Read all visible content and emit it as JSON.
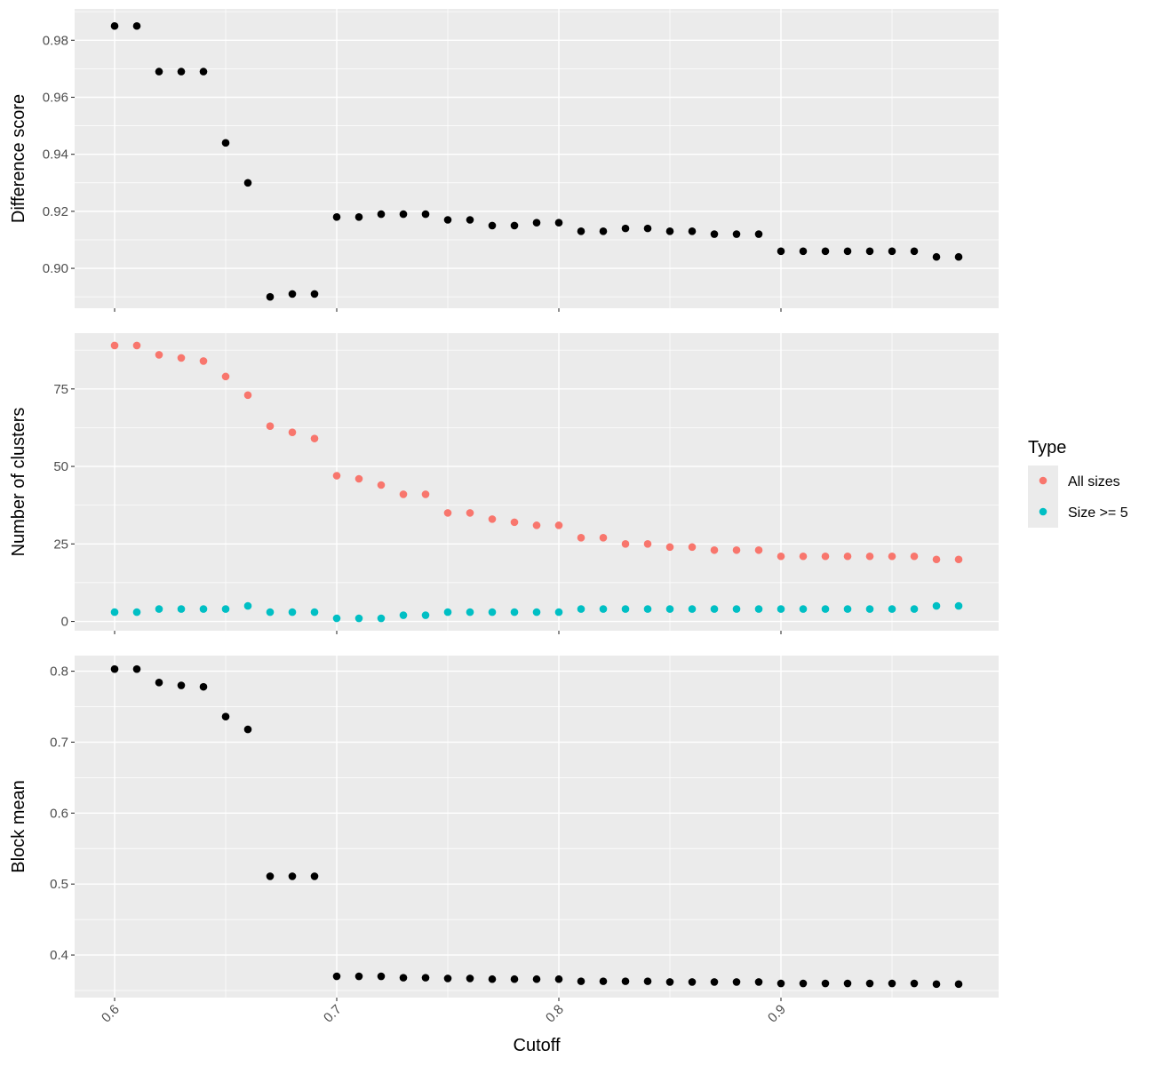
{
  "chart_data": [
    {
      "type": "scatter",
      "ylabel": "Difference score",
      "ylim": [
        0.886,
        0.991
      ],
      "yticks": [
        0.9,
        0.92,
        0.94,
        0.96,
        0.98
      ],
      "ytick_labels": [
        "0.90",
        "0.92",
        "0.94",
        "0.96",
        "0.98"
      ],
      "grid": true,
      "series": [
        {
          "color": "#000000",
          "x": [
            0.6,
            0.61,
            0.62,
            0.63,
            0.64,
            0.65,
            0.66,
            0.67,
            0.68,
            0.69,
            0.7,
            0.71,
            0.72,
            0.73,
            0.74,
            0.75,
            0.76,
            0.77,
            0.78,
            0.79,
            0.8,
            0.81,
            0.82,
            0.83,
            0.84,
            0.85,
            0.86,
            0.87,
            0.88,
            0.89,
            0.9,
            0.91,
            0.92,
            0.93,
            0.94,
            0.95,
            0.96,
            0.97,
            0.98
          ],
          "values": [
            0.985,
            0.985,
            0.969,
            0.969,
            0.969,
            0.944,
            0.93,
            0.89,
            0.891,
            0.891,
            0.918,
            0.918,
            0.919,
            0.919,
            0.919,
            0.917,
            0.917,
            0.915,
            0.915,
            0.916,
            0.916,
            0.913,
            0.913,
            0.914,
            0.914,
            0.913,
            0.913,
            0.912,
            0.912,
            0.912,
            0.906,
            0.906,
            0.906,
            0.906,
            0.906,
            0.906,
            0.906,
            0.904,
            0.904
          ]
        }
      ]
    },
    {
      "type": "scatter",
      "ylabel": "Number of clusters",
      "ylim": [
        -3,
        93
      ],
      "yticks": [
        0,
        25,
        50,
        75
      ],
      "ytick_labels": [
        "0",
        "25",
        "50",
        "75"
      ],
      "grid": true,
      "legend": {
        "title": "Type",
        "placement": "right"
      },
      "series": [
        {
          "name": "All sizes",
          "color": "#F8766D",
          "x": [
            0.6,
            0.61,
            0.62,
            0.63,
            0.64,
            0.65,
            0.66,
            0.67,
            0.68,
            0.69,
            0.7,
            0.71,
            0.72,
            0.73,
            0.74,
            0.75,
            0.76,
            0.77,
            0.78,
            0.79,
            0.8,
            0.81,
            0.82,
            0.83,
            0.84,
            0.85,
            0.86,
            0.87,
            0.88,
            0.89,
            0.9,
            0.91,
            0.92,
            0.93,
            0.94,
            0.95,
            0.96,
            0.97,
            0.98
          ],
          "values": [
            89,
            89,
            86,
            85,
            84,
            79,
            73,
            63,
            61,
            59,
            47,
            46,
            44,
            41,
            41,
            35,
            35,
            33,
            32,
            31,
            31,
            27,
            27,
            25,
            25,
            24,
            24,
            23,
            23,
            23,
            21,
            21,
            21,
            21,
            21,
            21,
            21,
            20,
            20
          ]
        },
        {
          "name": "Size >= 5",
          "color": "#00BFC4",
          "x": [
            0.6,
            0.61,
            0.62,
            0.63,
            0.64,
            0.65,
            0.66,
            0.67,
            0.68,
            0.69,
            0.7,
            0.71,
            0.72,
            0.73,
            0.74,
            0.75,
            0.76,
            0.77,
            0.78,
            0.79,
            0.8,
            0.81,
            0.82,
            0.83,
            0.84,
            0.85,
            0.86,
            0.87,
            0.88,
            0.89,
            0.9,
            0.91,
            0.92,
            0.93,
            0.94,
            0.95,
            0.96,
            0.97,
            0.98
          ],
          "values": [
            3,
            3,
            4,
            4,
            4,
            4,
            5,
            3,
            3,
            3,
            1,
            1,
            1,
            2,
            2,
            3,
            3,
            3,
            3,
            3,
            3,
            4,
            4,
            4,
            4,
            4,
            4,
            4,
            4,
            4,
            4,
            4,
            4,
            4,
            4,
            4,
            4,
            5,
            5
          ]
        }
      ]
    },
    {
      "type": "scatter",
      "ylabel": "Block mean",
      "xlabel": "Cutoff",
      "xlim": [
        0.582,
        0.998
      ],
      "xticks": [
        0.6,
        0.7,
        0.8,
        0.9
      ],
      "xtick_labels": [
        "0.6",
        "0.7",
        "0.8",
        "0.9"
      ],
      "ylim": [
        0.34,
        0.822
      ],
      "yticks": [
        0.4,
        0.5,
        0.6,
        0.7,
        0.8
      ],
      "ytick_labels": [
        "0.4",
        "0.5",
        "0.6",
        "0.7",
        "0.8"
      ],
      "grid": true,
      "series": [
        {
          "color": "#000000",
          "x": [
            0.6,
            0.61,
            0.62,
            0.63,
            0.64,
            0.65,
            0.66,
            0.67,
            0.68,
            0.69,
            0.7,
            0.71,
            0.72,
            0.73,
            0.74,
            0.75,
            0.76,
            0.77,
            0.78,
            0.79,
            0.8,
            0.81,
            0.82,
            0.83,
            0.84,
            0.85,
            0.86,
            0.87,
            0.88,
            0.89,
            0.9,
            0.91,
            0.92,
            0.93,
            0.94,
            0.95,
            0.96,
            0.97,
            0.98
          ],
          "values": [
            0.803,
            0.803,
            0.784,
            0.78,
            0.778,
            0.736,
            0.718,
            0.511,
            0.511,
            0.511,
            0.37,
            0.37,
            0.37,
            0.368,
            0.368,
            0.367,
            0.367,
            0.366,
            0.366,
            0.366,
            0.366,
            0.363,
            0.363,
            0.363,
            0.363,
            0.362,
            0.362,
            0.362,
            0.362,
            0.362,
            0.36,
            0.36,
            0.36,
            0.36,
            0.36,
            0.36,
            0.36,
            0.359,
            0.359
          ]
        }
      ]
    }
  ]
}
